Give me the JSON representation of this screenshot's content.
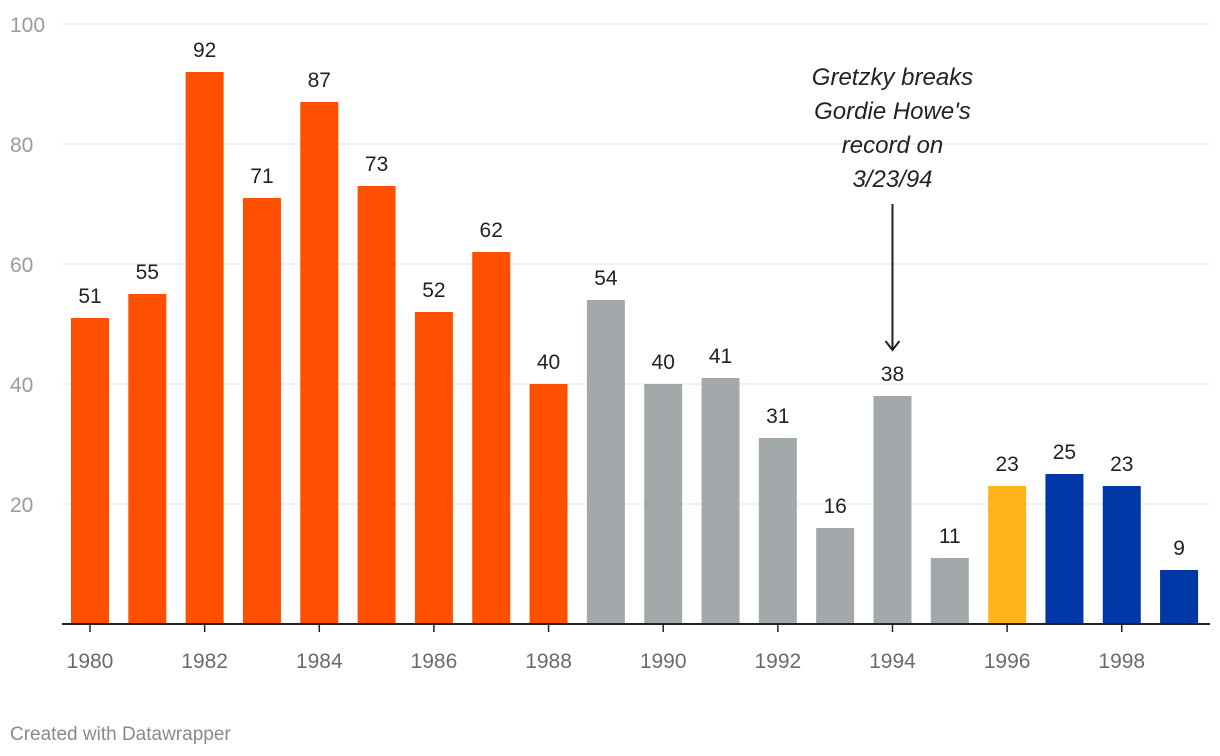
{
  "chart_data": {
    "type": "bar",
    "title": "",
    "xlabel": "",
    "ylabel": "",
    "ylim": [
      0,
      100
    ],
    "y_ticks": [
      "20",
      "40",
      "60",
      "80",
      "100"
    ],
    "y_tick_values": [
      20,
      40,
      60,
      80,
      100
    ],
    "categories": [
      "1980",
      "1981",
      "1982",
      "1983",
      "1984",
      "1985",
      "1986",
      "1987",
      "1988",
      "1989",
      "1990",
      "1991",
      "1992",
      "1993",
      "1994",
      "1995",
      "1996",
      "1997",
      "1998",
      "1999"
    ],
    "x_tick_labels": [
      "1980",
      "1982",
      "1984",
      "1986",
      "1988",
      "1990",
      "1992",
      "1994",
      "1996",
      "1998"
    ],
    "values": [
      51,
      55,
      92,
      71,
      87,
      73,
      52,
      62,
      40,
      54,
      40,
      41,
      31,
      16,
      38,
      11,
      23,
      25,
      23,
      9
    ],
    "value_labels": [
      "51",
      "55",
      "92",
      "71",
      "87",
      "73",
      "52",
      "62",
      "40",
      "54",
      "40",
      "41",
      "31",
      "16",
      "38",
      "11",
      "23",
      "25",
      "23",
      "9"
    ],
    "bar_color_groups": [
      "orange",
      "orange",
      "orange",
      "orange",
      "orange",
      "orange",
      "orange",
      "orange",
      "orange",
      "gray",
      "gray",
      "gray",
      "gray",
      "gray",
      "gray",
      "gray",
      "gold",
      "blue",
      "blue",
      "blue"
    ],
    "colors": {
      "orange": "#ff4f00",
      "gray": "#a3a8ab",
      "gold": "#ffb41a",
      "blue": "#0037a6"
    },
    "annotation": {
      "lines": [
        "Gretzky breaks",
        "Gordie Howe's",
        "record on",
        "3/23/94"
      ],
      "target_category": "1994"
    },
    "grid": true
  },
  "footer": {
    "credit": "Created with Datawrapper"
  }
}
